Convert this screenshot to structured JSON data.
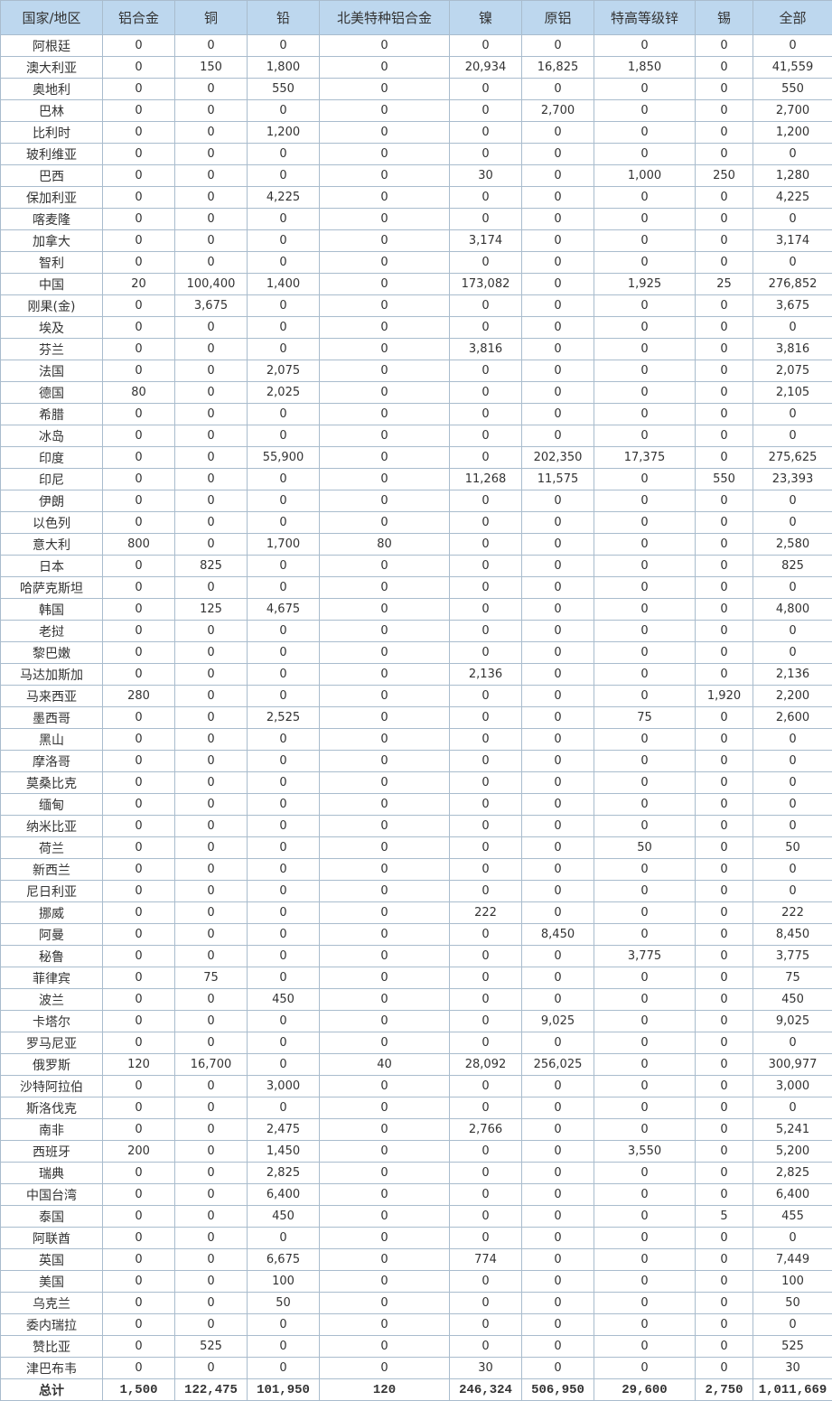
{
  "table": {
    "headers": [
      "国家/地区",
      "铝合金",
      "铜",
      "铅",
      "北美特种铝合金",
      "镍",
      "原铝",
      "特高等级锌",
      "锡",
      "全部"
    ],
    "rows": [
      [
        "阿根廷",
        "0",
        "0",
        "0",
        "0",
        "0",
        "0",
        "0",
        "0",
        "0"
      ],
      [
        "澳大利亚",
        "0",
        "150",
        "1,800",
        "0",
        "20,934",
        "16,825",
        "1,850",
        "0",
        "41,559"
      ],
      [
        "奥地利",
        "0",
        "0",
        "550",
        "0",
        "0",
        "0",
        "0",
        "0",
        "550"
      ],
      [
        "巴林",
        "0",
        "0",
        "0",
        "0",
        "0",
        "2,700",
        "0",
        "0",
        "2,700"
      ],
      [
        "比利时",
        "0",
        "0",
        "1,200",
        "0",
        "0",
        "0",
        "0",
        "0",
        "1,200"
      ],
      [
        "玻利维亚",
        "0",
        "0",
        "0",
        "0",
        "0",
        "0",
        "0",
        "0",
        "0"
      ],
      [
        "巴西",
        "0",
        "0",
        "0",
        "0",
        "30",
        "0",
        "1,000",
        "250",
        "1,280"
      ],
      [
        "保加利亚",
        "0",
        "0",
        "4,225",
        "0",
        "0",
        "0",
        "0",
        "0",
        "4,225"
      ],
      [
        "喀麦隆",
        "0",
        "0",
        "0",
        "0",
        "0",
        "0",
        "0",
        "0",
        "0"
      ],
      [
        "加拿大",
        "0",
        "0",
        "0",
        "0",
        "3,174",
        "0",
        "0",
        "0",
        "3,174"
      ],
      [
        "智利",
        "0",
        "0",
        "0",
        "0",
        "0",
        "0",
        "0",
        "0",
        "0"
      ],
      [
        "中国",
        "20",
        "100,400",
        "1,400",
        "0",
        "173,082",
        "0",
        "1,925",
        "25",
        "276,852"
      ],
      [
        "刚果(金)",
        "0",
        "3,675",
        "0",
        "0",
        "0",
        "0",
        "0",
        "0",
        "3,675"
      ],
      [
        "埃及",
        "0",
        "0",
        "0",
        "0",
        "0",
        "0",
        "0",
        "0",
        "0"
      ],
      [
        "芬兰",
        "0",
        "0",
        "0",
        "0",
        "3,816",
        "0",
        "0",
        "0",
        "3,816"
      ],
      [
        "法国",
        "0",
        "0",
        "2,075",
        "0",
        "0",
        "0",
        "0",
        "0",
        "2,075"
      ],
      [
        "德国",
        "80",
        "0",
        "2,025",
        "0",
        "0",
        "0",
        "0",
        "0",
        "2,105"
      ],
      [
        "希腊",
        "0",
        "0",
        "0",
        "0",
        "0",
        "0",
        "0",
        "0",
        "0"
      ],
      [
        "冰岛",
        "0",
        "0",
        "0",
        "0",
        "0",
        "0",
        "0",
        "0",
        "0"
      ],
      [
        "印度",
        "0",
        "0",
        "55,900",
        "0",
        "0",
        "202,350",
        "17,375",
        "0",
        "275,625"
      ],
      [
        "印尼",
        "0",
        "0",
        "0",
        "0",
        "11,268",
        "11,575",
        "0",
        "550",
        "23,393"
      ],
      [
        "伊朗",
        "0",
        "0",
        "0",
        "0",
        "0",
        "0",
        "0",
        "0",
        "0"
      ],
      [
        "以色列",
        "0",
        "0",
        "0",
        "0",
        "0",
        "0",
        "0",
        "0",
        "0"
      ],
      [
        "意大利",
        "800",
        "0",
        "1,700",
        "80",
        "0",
        "0",
        "0",
        "0",
        "2,580"
      ],
      [
        "日本",
        "0",
        "825",
        "0",
        "0",
        "0",
        "0",
        "0",
        "0",
        "825"
      ],
      [
        "哈萨克斯坦",
        "0",
        "0",
        "0",
        "0",
        "0",
        "0",
        "0",
        "0",
        "0"
      ],
      [
        "韩国",
        "0",
        "125",
        "4,675",
        "0",
        "0",
        "0",
        "0",
        "0",
        "4,800"
      ],
      [
        "老挝",
        "0",
        "0",
        "0",
        "0",
        "0",
        "0",
        "0",
        "0",
        "0"
      ],
      [
        "黎巴嫩",
        "0",
        "0",
        "0",
        "0",
        "0",
        "0",
        "0",
        "0",
        "0"
      ],
      [
        "马达加斯加",
        "0",
        "0",
        "0",
        "0",
        "2,136",
        "0",
        "0",
        "0",
        "2,136"
      ],
      [
        "马来西亚",
        "280",
        "0",
        "0",
        "0",
        "0",
        "0",
        "0",
        "1,920",
        "2,200"
      ],
      [
        "墨西哥",
        "0",
        "0",
        "2,525",
        "0",
        "0",
        "0",
        "75",
        "0",
        "2,600"
      ],
      [
        "黑山",
        "0",
        "0",
        "0",
        "0",
        "0",
        "0",
        "0",
        "0",
        "0"
      ],
      [
        "摩洛哥",
        "0",
        "0",
        "0",
        "0",
        "0",
        "0",
        "0",
        "0",
        "0"
      ],
      [
        "莫桑比克",
        "0",
        "0",
        "0",
        "0",
        "0",
        "0",
        "0",
        "0",
        "0"
      ],
      [
        "缅甸",
        "0",
        "0",
        "0",
        "0",
        "0",
        "0",
        "0",
        "0",
        "0"
      ],
      [
        "纳米比亚",
        "0",
        "0",
        "0",
        "0",
        "0",
        "0",
        "0",
        "0",
        "0"
      ],
      [
        "荷兰",
        "0",
        "0",
        "0",
        "0",
        "0",
        "0",
        "50",
        "0",
        "50"
      ],
      [
        "新西兰",
        "0",
        "0",
        "0",
        "0",
        "0",
        "0",
        "0",
        "0",
        "0"
      ],
      [
        "尼日利亚",
        "0",
        "0",
        "0",
        "0",
        "0",
        "0",
        "0",
        "0",
        "0"
      ],
      [
        "挪威",
        "0",
        "0",
        "0",
        "0",
        "222",
        "0",
        "0",
        "0",
        "222"
      ],
      [
        "阿曼",
        "0",
        "0",
        "0",
        "0",
        "0",
        "8,450",
        "0",
        "0",
        "8,450"
      ],
      [
        "秘鲁",
        "0",
        "0",
        "0",
        "0",
        "0",
        "0",
        "3,775",
        "0",
        "3,775"
      ],
      [
        "菲律宾",
        "0",
        "75",
        "0",
        "0",
        "0",
        "0",
        "0",
        "0",
        "75"
      ],
      [
        "波兰",
        "0",
        "0",
        "450",
        "0",
        "0",
        "0",
        "0",
        "0",
        "450"
      ],
      [
        "卡塔尔",
        "0",
        "0",
        "0",
        "0",
        "0",
        "9,025",
        "0",
        "0",
        "9,025"
      ],
      [
        "罗马尼亚",
        "0",
        "0",
        "0",
        "0",
        "0",
        "0",
        "0",
        "0",
        "0"
      ],
      [
        "俄罗斯",
        "120",
        "16,700",
        "0",
        "40",
        "28,092",
        "256,025",
        "0",
        "0",
        "300,977"
      ],
      [
        "沙特阿拉伯",
        "0",
        "0",
        "3,000",
        "0",
        "0",
        "0",
        "0",
        "0",
        "3,000"
      ],
      [
        "斯洛伐克",
        "0",
        "0",
        "0",
        "0",
        "0",
        "0",
        "0",
        "0",
        "0"
      ],
      [
        "南非",
        "0",
        "0",
        "2,475",
        "0",
        "2,766",
        "0",
        "0",
        "0",
        "5,241"
      ],
      [
        "西班牙",
        "200",
        "0",
        "1,450",
        "0",
        "0",
        "0",
        "3,550",
        "0",
        "5,200"
      ],
      [
        "瑞典",
        "0",
        "0",
        "2,825",
        "0",
        "0",
        "0",
        "0",
        "0",
        "2,825"
      ],
      [
        "中国台湾",
        "0",
        "0",
        "6,400",
        "0",
        "0",
        "0",
        "0",
        "0",
        "6,400"
      ],
      [
        "泰国",
        "0",
        "0",
        "450",
        "0",
        "0",
        "0",
        "0",
        "5",
        "455"
      ],
      [
        "阿联酋",
        "0",
        "0",
        "0",
        "0",
        "0",
        "0",
        "0",
        "0",
        "0"
      ],
      [
        "英国",
        "0",
        "0",
        "6,675",
        "0",
        "774",
        "0",
        "0",
        "0",
        "7,449"
      ],
      [
        "美国",
        "0",
        "0",
        "100",
        "0",
        "0",
        "0",
        "0",
        "0",
        "100"
      ],
      [
        "乌克兰",
        "0",
        "0",
        "50",
        "0",
        "0",
        "0",
        "0",
        "0",
        "50"
      ],
      [
        "委内瑞拉",
        "0",
        "0",
        "0",
        "0",
        "0",
        "0",
        "0",
        "0",
        "0"
      ],
      [
        "赞比亚",
        "0",
        "525",
        "0",
        "0",
        "0",
        "0",
        "0",
        "0",
        "525"
      ],
      [
        "津巴布韦",
        "0",
        "0",
        "0",
        "0",
        "30",
        "0",
        "0",
        "0",
        "30"
      ]
    ],
    "total": [
      "总计",
      "1,500",
      "122,475",
      "101,950",
      "120",
      "246,324",
      "506,950",
      "29,600",
      "2,750",
      "1,011,669"
    ]
  },
  "colors": {
    "header_bg": "#bdd7ee",
    "border": "#a9bccd"
  }
}
